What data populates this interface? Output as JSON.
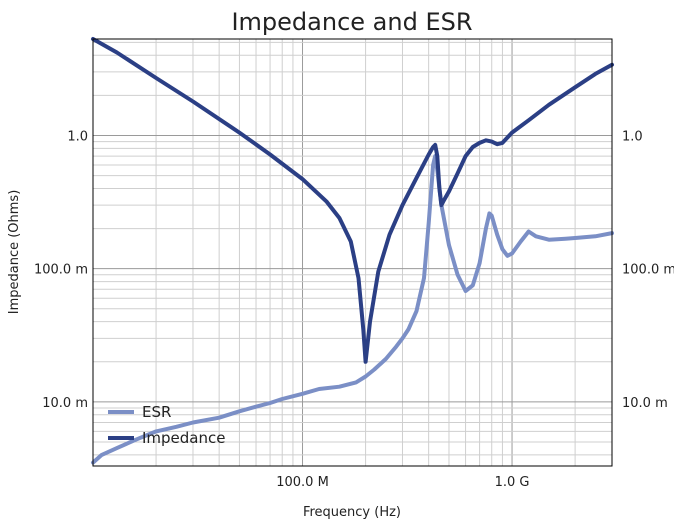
{
  "chart_data": {
    "type": "line",
    "title": "Impedance and ESR",
    "xlabel": "Frequency (Hz)",
    "ylabel": "Impedance (Ohms)",
    "x_scale": "log",
    "y_scale": "log",
    "xlim": [
      10000000,
      3000000000
    ],
    "ylim": [
      0.0033,
      5.3
    ],
    "x_ticks": [
      {
        "value": 100000000,
        "label": "100.0 M"
      },
      {
        "value": 1000000000,
        "label": "1.0 G"
      }
    ],
    "y_ticks": [
      {
        "value": 0.01,
        "label": "10.0 m"
      },
      {
        "value": 0.1,
        "label": "100.0 m"
      },
      {
        "value": 1.0,
        "label": "1.0"
      }
    ],
    "y_ticks_right": true,
    "grid": true,
    "legend": "bottom-left",
    "series": [
      {
        "name": "ESR",
        "color": "#7b8fc6",
        "x": [
          10000000,
          11000000,
          13000000,
          16000000,
          20000000,
          25000000,
          30000000,
          40000000,
          50000000,
          60000000,
          70000000,
          80000000,
          100000000,
          120000000,
          150000000,
          180000000,
          200000000,
          220000000,
          250000000,
          280000000,
          300000000,
          320000000,
          350000000,
          380000000,
          400000000,
          420000000,
          430000000,
          440000000,
          460000000,
          500000000,
          550000000,
          600000000,
          650000000,
          700000000,
          750000000,
          780000000,
          800000000,
          850000000,
          900000000,
          950000000,
          1000000000,
          1100000000,
          1200000000,
          1300000000,
          1500000000,
          1800000000,
          2000000000,
          2500000000,
          3000000000
        ],
        "values": [
          0.0035,
          0.004,
          0.0045,
          0.0052,
          0.006,
          0.0065,
          0.007,
          0.0076,
          0.0085,
          0.0092,
          0.0098,
          0.0105,
          0.0115,
          0.0125,
          0.013,
          0.014,
          0.0155,
          0.0175,
          0.021,
          0.026,
          0.03,
          0.035,
          0.048,
          0.085,
          0.22,
          0.6,
          0.7,
          0.55,
          0.3,
          0.15,
          0.09,
          0.068,
          0.075,
          0.11,
          0.2,
          0.26,
          0.25,
          0.18,
          0.14,
          0.125,
          0.13,
          0.16,
          0.19,
          0.175,
          0.165,
          0.168,
          0.17,
          0.175,
          0.185
        ]
      },
      {
        "name": "Impedance",
        "color": "#2b3f85",
        "x": [
          10000000,
          13000000,
          20000000,
          30000000,
          50000000,
          70000000,
          100000000,
          130000000,
          150000000,
          170000000,
          185000000,
          195000000,
          200000000,
          210000000,
          230000000,
          260000000,
          300000000,
          350000000,
          400000000,
          420000000,
          430000000,
          440000000,
          450000000,
          460000000,
          470000000,
          500000000,
          550000000,
          600000000,
          650000000,
          700000000,
          750000000,
          800000000,
          850000000,
          900000000,
          1000000000,
          1200000000,
          1500000000,
          2000000000,
          2500000000,
          3000000000
        ],
        "values": [
          5.3,
          4.2,
          2.7,
          1.8,
          1.05,
          0.72,
          0.47,
          0.32,
          0.24,
          0.16,
          0.085,
          0.035,
          0.02,
          0.04,
          0.095,
          0.18,
          0.3,
          0.48,
          0.72,
          0.82,
          0.85,
          0.7,
          0.4,
          0.3,
          0.32,
          0.38,
          0.52,
          0.7,
          0.82,
          0.88,
          0.92,
          0.9,
          0.86,
          0.88,
          1.05,
          1.3,
          1.7,
          2.3,
          2.9,
          3.4
        ]
      }
    ]
  }
}
